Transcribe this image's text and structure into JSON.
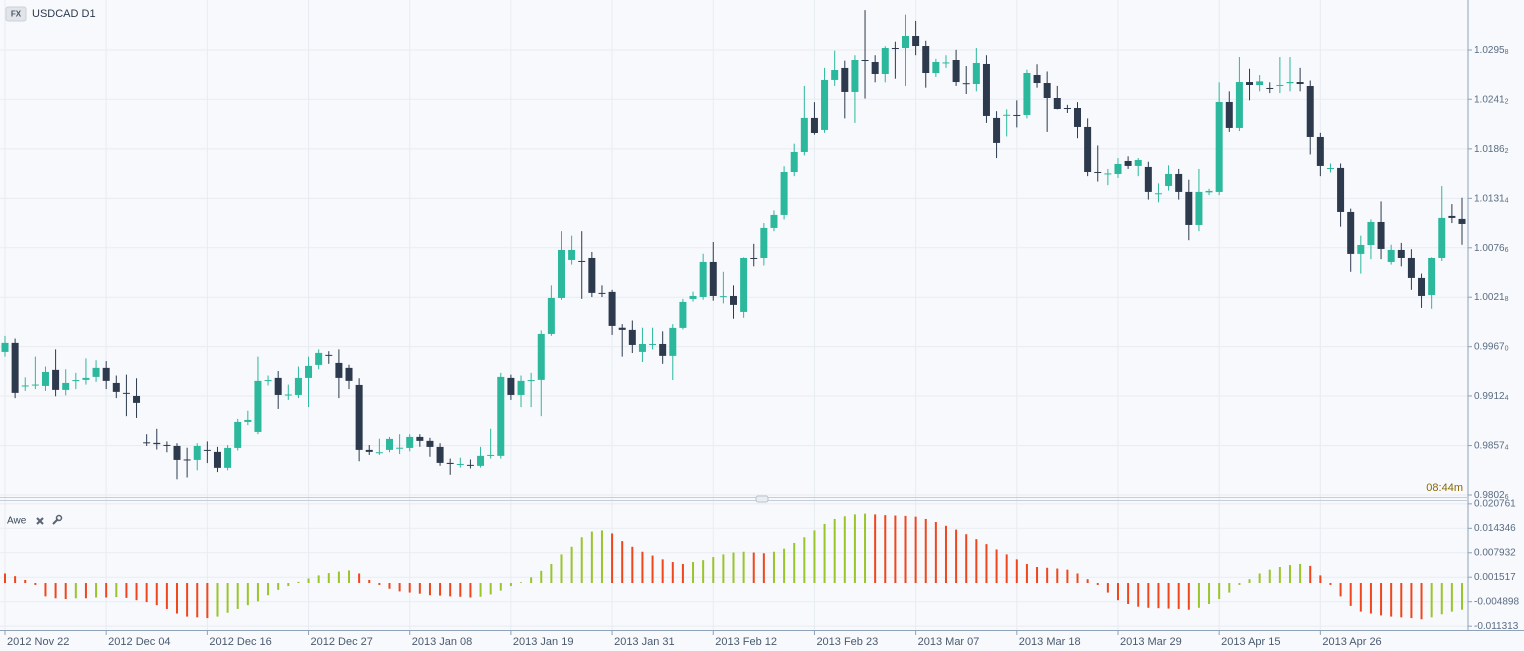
{
  "chart_data": [
    {
      "type": "candlestick",
      "symbol_badge": "FX",
      "title": "USDCAD D1",
      "countdown": "08:44m",
      "categories": [
        "2012 Nov 22",
        null,
        null,
        null,
        null,
        null,
        null,
        null,
        null,
        null,
        "2012 Dec 04",
        null,
        null,
        null,
        null,
        null,
        null,
        null,
        null,
        null,
        "2012 Dec 16",
        null,
        null,
        null,
        null,
        null,
        null,
        null,
        null,
        null,
        "2012 Dec 27",
        null,
        null,
        null,
        null,
        null,
        null,
        null,
        null,
        null,
        "2013 Jan 08",
        null,
        null,
        null,
        null,
        null,
        null,
        null,
        null,
        null,
        "2013 Jan 19",
        null,
        null,
        null,
        null,
        null,
        null,
        null,
        null,
        null,
        "2013 Jan 31",
        null,
        null,
        null,
        null,
        null,
        null,
        null,
        null,
        null,
        "2013 Feb 12",
        null,
        null,
        null,
        null,
        null,
        null,
        null,
        null,
        null,
        "2013 Feb 23",
        null,
        null,
        null,
        null,
        null,
        null,
        null,
        null,
        null,
        "2013 Mar 07",
        null,
        null,
        null,
        null,
        null,
        null,
        null,
        null,
        null,
        "2013 Mar 18",
        null,
        null,
        null,
        null,
        null,
        null,
        null,
        null,
        null,
        "2013 Mar 29",
        null,
        null,
        null,
        null,
        null,
        null,
        null,
        null,
        null,
        "2013 Apr 15",
        null,
        null,
        null,
        null,
        null,
        null,
        null,
        null,
        null,
        "2013 Apr 26",
        null,
        null,
        null,
        null,
        null,
        null,
        null,
        null,
        null,
        null,
        null,
        null,
        null,
        null
      ],
      "open": [
        0.99612,
        0.99712,
        0.99235,
        0.99246,
        0.99235,
        0.99413,
        0.99191,
        0.99291,
        0.99302,
        0.99335,
        0.99435,
        0.99268,
        0.99158,
        0.99124,
        0.9861,
        0.98604,
        0.98581,
        0.9857,
        0.9842,
        0.98415,
        0.98526,
        0.98504,
        0.98327,
        0.98548,
        0.98836,
        0.98725,
        0.99291,
        0.99324,
        0.99135,
        0.99135,
        0.99324,
        0.99468,
        0.99579,
        0.9949,
        0.99435,
        0.99246,
        0.98526,
        0.9849,
        0.98526,
        0.98548,
        0.98548,
        0.9867,
        0.98626,
        0.98559,
        0.98382,
        0.9836,
        0.9836,
        0.98349,
        0.9846,
        0.9846,
        0.99324,
        0.99135,
        0.99291,
        0.99302,
        0.99811,
        1.0021,
        1.00631,
        1.0062,
        1.00653,
        1.00266,
        1.00277,
        0.9988,
        0.99856,
        0.99612,
        0.99689,
        0.997,
        0.99568,
        0.99878,
        1.00199,
        1.00221,
        1.00609,
        1.00221,
        1.00232,
        1.00055,
        1.00653,
        1.00653,
        1.00986,
        1.0113,
        1.01606,
        1.01828,
        1.02205,
        1.02072,
        1.02626,
        1.02759,
        1.02493,
        1.02847,
        1.02825,
        1.02692,
        1.0298,
        1.0298,
        1.03113,
        1.03002,
        1.02703,
        1.02814,
        1.02847,
        1.0259,
        1.02581,
        1.02803,
        1.02205,
        1.02238,
        1.02238,
        1.02238,
        1.02681,
        1.02592,
        1.02426,
        1.02315,
        1.02315,
        1.02105,
        1.01606,
        1.01584,
        1.01584,
        1.01728,
        1.01673,
        1.01662,
        1.01362,
        1.01451,
        1.01584,
        1.01385,
        1.01019,
        1.0138,
        1.01385,
        1.02382,
        1.02094,
        1.02603,
        1.0257,
        1.02537,
        1.02559,
        1.0259,
        1.02603,
        1.02559,
        1.01994,
        1.0164,
        1.01651,
        1.01163,
        1.00698,
        1.00797,
        1.01052,
        1.00609,
        1.00742,
        1.00653,
        1.00432,
        1.00243,
        1.00653,
        1.01119,
        1.01086
      ],
      "high": [
        0.9979,
        0.9976,
        0.9933,
        0.9956,
        0.9945,
        0.9964,
        0.9942,
        0.9938,
        0.9954,
        0.9952,
        0.9951,
        0.9935,
        0.9936,
        0.9932,
        0.987,
        0.9876,
        0.9862,
        0.986,
        0.9855,
        0.986,
        0.9862,
        0.9856,
        0.9858,
        0.9887,
        0.9896,
        0.9956,
        0.9935,
        0.994,
        0.9925,
        0.9945,
        0.9956,
        0.9964,
        0.9962,
        0.9964,
        0.9947,
        0.9932,
        0.9858,
        0.9865,
        0.9867,
        0.987,
        0.987,
        0.987,
        0.9866,
        0.986,
        0.9843,
        0.9844,
        0.9842,
        0.9856,
        0.9876,
        0.9938,
        0.9936,
        0.9935,
        0.9938,
        0.9985,
        1.0035,
        1.0095,
        1.009,
        1.0095,
        1.0072,
        1.0035,
        1.003,
        0.9992,
        0.9996,
        0.9988,
        0.9988,
        0.9984,
        0.9992,
        1.002,
        1.0028,
        1.007,
        1.0083,
        1.005,
        1.0035,
        1.0066,
        1.0081,
        1.0104,
        1.0118,
        1.0167,
        1.0192,
        1.0256,
        1.0238,
        1.0276,
        1.0295,
        1.0284,
        1.029,
        1.034,
        1.029,
        1.03,
        1.0305,
        1.0335,
        1.0328,
        1.0306,
        1.0286,
        1.029,
        1.0296,
        1.0278,
        1.0298,
        1.029,
        1.0228,
        1.023,
        1.024,
        1.0274,
        1.028,
        1.0272,
        1.0256,
        1.0235,
        1.0238,
        1.022,
        1.019,
        1.0164,
        1.0176,
        1.0178,
        1.0176,
        1.0172,
        1.0148,
        1.0168,
        1.0164,
        1.0152,
        1.0164,
        1.0142,
        1.026,
        1.025,
        1.0288,
        1.0275,
        1.0268,
        1.026,
        1.0288,
        1.0288,
        1.0276,
        1.0262,
        1.0204,
        1.017,
        1.017,
        1.012,
        1.009,
        1.0108,
        1.0128,
        1.008,
        1.0082,
        1.0075,
        1.0048,
        1.0066,
        1.0145,
        1.0125,
        1.0132
      ],
      "low": [
        0.9956,
        0.991,
        0.9918,
        0.992,
        0.9918,
        0.9912,
        0.9913,
        0.992,
        0.9925,
        0.9928,
        0.992,
        0.991,
        0.989,
        0.9888,
        0.9857,
        0.9853,
        0.985,
        0.982,
        0.9822,
        0.983,
        0.9838,
        0.9828,
        0.983,
        0.9852,
        0.988,
        0.987,
        0.9924,
        0.9898,
        0.9908,
        0.991,
        0.99,
        0.9942,
        0.9948,
        0.991,
        0.992,
        0.984,
        0.9847,
        0.9847,
        0.985,
        0.9848,
        0.9851,
        0.9856,
        0.9845,
        0.9835,
        0.9825,
        0.9833,
        0.9832,
        0.9833,
        0.9843,
        0.9843,
        0.9908,
        0.99,
        0.99,
        0.989,
        0.9979,
        1.0019,
        1.0058,
        1.002,
        1.0022,
        1.0022,
        0.998,
        0.9956,
        0.996,
        0.995,
        0.9964,
        0.9948,
        0.993,
        0.9986,
        1.0017,
        1.0019,
        1.0018,
        1.0015,
        0.9998,
        0.9999,
        1.0056,
        1.0057,
        1.0095,
        1.0108,
        1.0156,
        1.0179,
        1.0202,
        1.0204,
        1.0256,
        1.022,
        1.0215,
        1.0242,
        1.026,
        1.026,
        1.0264,
        1.0256,
        1.029,
        1.0254,
        1.0266,
        1.0276,
        1.0256,
        1.0247,
        1.025,
        1.0215,
        1.0176,
        1.02,
        1.021,
        1.022,
        1.0254,
        1.0205,
        1.023,
        1.0226,
        1.0198,
        1.0156,
        1.015,
        1.0146,
        1.0154,
        1.0164,
        1.0156,
        1.013,
        1.0127,
        1.014,
        1.013,
        1.0085,
        1.0095,
        1.0135,
        1.0135,
        1.0205,
        1.0206,
        1.024,
        1.025,
        1.0248,
        1.0248,
        1.025,
        1.025,
        1.018,
        1.0156,
        1.016,
        1.01,
        1.005,
        1.0048,
        1.0064,
        1.0064,
        1.0058,
        1.0056,
        1.003,
        1.001,
        1.0009,
        1.0062,
        1.0104,
        1.008
      ],
      "close": [
        0.99712,
        0.99158,
        0.9924,
        0.9925,
        0.9939,
        0.99191,
        0.99268,
        0.993,
        0.99324,
        0.99435,
        0.99291,
        0.99169,
        0.9915,
        0.99047,
        0.98604,
        0.9859,
        0.9857,
        0.98415,
        0.98415,
        0.9857,
        0.9852,
        0.98327,
        0.98548,
        0.98836,
        0.98858,
        0.99291,
        0.993,
        0.99135,
        0.9914,
        0.99324,
        0.99457,
        0.99601,
        0.9957,
        0.99324,
        0.99291,
        0.98526,
        0.98504,
        0.985,
        0.98648,
        0.9855,
        0.9867,
        0.98626,
        0.98559,
        0.98382,
        0.9837,
        0.9837,
        0.98349,
        0.9846,
        0.9847,
        0.99335,
        0.99135,
        0.99291,
        0.993,
        0.99811,
        1.0021,
        1.00742,
        1.00742,
        1.0061,
        1.00266,
        1.0026,
        0.999,
        0.99856,
        0.99689,
        0.997,
        0.997,
        0.99568,
        0.99878,
        1.00166,
        1.00232,
        1.00609,
        1.00232,
        1.0023,
        1.00133,
        1.00653,
        1.0065,
        1.00986,
        1.0113,
        1.01606,
        1.01828,
        1.02205,
        1.02038,
        1.02626,
        1.02736,
        1.02493,
        1.02847,
        1.0284,
        1.02692,
        1.0298,
        1.0297,
        1.03113,
        1.03002,
        1.02703,
        1.02825,
        1.0282,
        1.02603,
        1.02581,
        1.02814,
        1.02227,
        1.01928,
        1.0224,
        1.0223,
        1.02703,
        1.02592,
        1.02426,
        1.02304,
        1.0231,
        1.02105,
        1.01606,
        1.016,
        1.0159,
        1.01695,
        1.01673,
        1.01739,
        1.01385,
        1.0137,
        1.01584,
        1.01385,
        1.01019,
        1.01385,
        1.01396,
        1.02382,
        1.02094,
        1.02603,
        1.0257,
        1.0261,
        1.0253,
        1.0257,
        1.02603,
        1.02581,
        1.01994,
        1.01673,
        1.0165,
        1.01163,
        1.00698,
        1.00797,
        1.01052,
        1.00753,
        1.00742,
        1.00653,
        1.00432,
        1.00232,
        1.00653,
        1.01097,
        1.01097,
        1.0103
      ],
      "up_color": "#2bb89c",
      "down_color": "#2d3a4d",
      "ylim": [
        0.98004,
        1.03512
      ],
      "yticks": [
        1.02958,
        1.02412,
        1.01862,
        1.01314,
        1.00766,
        1.00218,
        {
          "value": 0.9967,
          "label": "0.99670"
        },
        0.99124,
        0.98574,
        0.98026
      ],
      "grid": true
    },
    {
      "type": "bar",
      "title": "Awe",
      "values": [
        0.0025,
        0.0018,
        0.0008,
        -0.0005,
        -0.0035,
        -0.004,
        -0.0042,
        -0.004,
        -0.004,
        -0.0038,
        -0.0038,
        -0.0037,
        -0.0039,
        -0.0045,
        -0.005,
        -0.0058,
        -0.0068,
        -0.008,
        -0.0088,
        -0.009,
        -0.0092,
        -0.0088,
        -0.0078,
        -0.0068,
        -0.0058,
        -0.0048,
        -0.0032,
        -0.0018,
        -0.0008,
        0.0003,
        0.0012,
        0.002,
        0.0026,
        0.003,
        0.0033,
        0.0025,
        0.0008,
        -0.0005,
        -0.0015,
        -0.0022,
        -0.0025,
        -0.0028,
        -0.0032,
        -0.0033,
        -0.0035,
        -0.0036,
        -0.0038,
        -0.0036,
        -0.003,
        -0.002,
        -0.0008,
        0.0002,
        0.0015,
        0.0032,
        0.005,
        0.0075,
        0.0095,
        0.012,
        0.0135,
        0.0138,
        0.013,
        0.011,
        0.0095,
        0.0082,
        0.0072,
        0.0062,
        0.0055,
        0.005,
        0.0055,
        0.006,
        0.0068,
        0.0075,
        0.008,
        0.0082,
        0.008,
        0.0078,
        0.0082,
        0.009,
        0.0105,
        0.012,
        0.0138,
        0.0155,
        0.0168,
        0.0175,
        0.018,
        0.0182,
        0.018,
        0.0178,
        0.0177,
        0.0176,
        0.0174,
        0.0168,
        0.016,
        0.015,
        0.014,
        0.0128,
        0.0115,
        0.0102,
        0.0088,
        0.0075,
        0.0062,
        0.005,
        0.0042,
        0.004,
        0.0038,
        0.0035,
        0.0025,
        0.001,
        -0.0005,
        -0.0025,
        -0.0045,
        -0.0055,
        -0.0062,
        -0.0065,
        -0.0066,
        -0.0067,
        -0.0068,
        -0.007,
        -0.0065,
        -0.0055,
        -0.0042,
        -0.0025,
        -0.0005,
        0.001,
        0.0025,
        0.0035,
        0.0042,
        0.0047,
        0.005,
        0.0045,
        0.002,
        -0.0005,
        -0.0035,
        -0.006,
        -0.0075,
        -0.008,
        -0.0085,
        -0.0088,
        -0.009,
        -0.0092,
        -0.0095,
        -0.009,
        -0.0082,
        -0.0075,
        -0.007
      ],
      "up_color": "#9ac52a",
      "down_color": "#f0461c",
      "ylim": [
        -0.01232,
        0.02177
      ],
      "yticks": [
        0.020761,
        0.014346,
        0.007932,
        0.001517,
        -0.004898,
        -0.011313
      ],
      "grid": true
    }
  ]
}
